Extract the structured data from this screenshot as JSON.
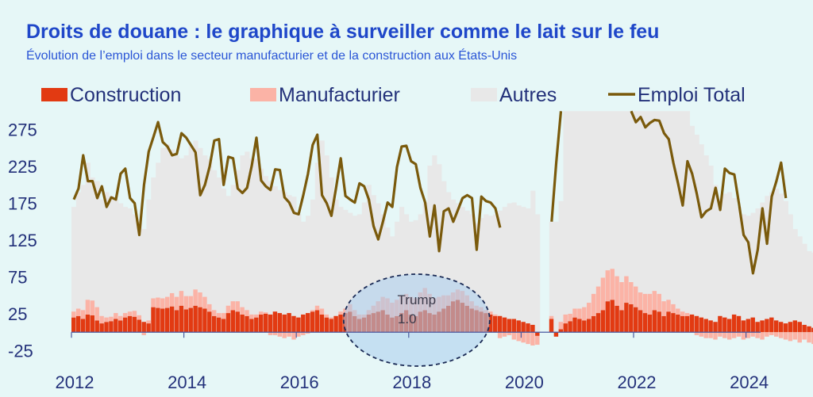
{
  "title": "Droits de douane : le graphique à surveiller comme le lait sur le feu",
  "subtitle": "Évolution de l’emploi dans le secteur manufacturier et de la construction aux États-Unis",
  "colors": {
    "construction": "#e23a12",
    "manufacturier": "#fbb3a6",
    "autres": "#e8e8e8",
    "total": "#7a5a0c",
    "axis_text": "#23317a",
    "annotation_fill": "#a9cdef",
    "annotation_stroke": "#1a2a55"
  },
  "annotation": {
    "label_line1": "Trump",
    "label_line2": "1.0"
  },
  "chart_data": {
    "type": "bar",
    "x_unit": "month",
    "y_ticks": [
      275,
      225,
      175,
      125,
      75,
      25,
      -25
    ],
    "ylim": [
      -25,
      300
    ],
    "x_ticks": [
      "2012",
      "2014",
      "2016",
      "2018",
      "2020",
      "2022",
      "2024"
    ],
    "legend": [
      "Construction",
      "Manufacturier",
      "Autres",
      "Emploi Total"
    ],
    "legend_position": "top",
    "series": [
      {
        "name": "Construction",
        "kind": "bar",
        "segments": [
          {
            "start": "2012-01",
            "values": [
              20,
              22,
              18,
              24,
              23,
              16,
              12,
              14,
              15,
              18,
              16,
              20,
              22,
              21,
              17,
              14,
              12,
              34,
              33,
              32,
              33,
              35,
              30,
              36,
              31,
              33,
              36,
              34,
              32,
              28,
              22,
              20,
              18,
              26,
              30,
              28,
              24,
              22,
              18,
              20,
              24,
              25,
              24,
              28,
              26,
              24,
              26,
              22,
              20,
              24,
              26,
              28,
              30,
              24,
              20,
              18,
              22,
              24,
              26,
              28,
              22,
              18,
              20,
              24,
              26,
              28,
              30,
              24,
              20,
              22,
              26,
              30,
              24,
              22,
              28,
              30,
              26,
              24,
              28,
              32,
              36,
              42,
              44,
              40,
              36,
              32,
              30,
              28,
              26,
              24,
              22,
              22,
              20,
              18,
              18,
              16,
              14,
              12,
              10,
              -5
            ]
          },
          {
            "start": "2020-07",
            "values": [
              18,
              -6,
              4,
              12,
              15,
              20,
              18,
              16,
              18,
              22,
              26,
              30,
              42,
              44,
              36,
              30,
              40,
              38,
              34,
              30,
              26,
              24,
              30,
              28,
              22,
              28,
              26,
              24,
              22,
              22,
              24,
              22,
              20,
              18,
              16,
              14,
              22,
              20,
              18,
              24,
              22,
              16,
              18,
              20,
              14,
              16,
              18,
              20,
              16,
              14,
              12,
              14,
              16,
              14,
              10,
              8,
              6,
              8,
              6,
              10
            ]
          }
        ]
      },
      {
        "name": "Manufacturier",
        "kind": "bar",
        "segments": [
          {
            "start": "2012-01",
            "values": [
              8,
              10,
              12,
              20,
              20,
              18,
              10,
              6,
              6,
              8,
              6,
              6,
              6,
              8,
              6,
              -4,
              4,
              12,
              14,
              14,
              15,
              18,
              18,
              20,
              18,
              16,
              22,
              20,
              16,
              10,
              8,
              6,
              8,
              10,
              12,
              14,
              10,
              8,
              6,
              4,
              4,
              2,
              -4,
              -4,
              -6,
              -8,
              -6,
              -10,
              -6,
              -4,
              -2,
              2,
              6,
              8,
              4,
              2,
              0,
              4,
              6,
              10,
              8,
              6,
              4,
              6,
              10,
              14,
              18,
              22,
              20,
              22,
              24,
              22,
              24,
              24,
              26,
              30,
              26,
              22,
              20,
              18,
              14,
              12,
              14,
              16,
              14,
              10,
              6,
              6,
              4,
              4,
              2,
              -8,
              -6,
              -4,
              -10,
              -12,
              -14,
              -16,
              -18,
              -12
            ]
          },
          {
            "start": "2020-07",
            "values": [
              4,
              0,
              10,
              12,
              10,
              12,
              14,
              18,
              22,
              30,
              36,
              44,
              42,
              42,
              40,
              38,
              36,
              30,
              28,
              24,
              26,
              28,
              26,
              24,
              20,
              16,
              12,
              8,
              6,
              4,
              0,
              -4,
              -6,
              -8,
              -8,
              -10,
              -6,
              -8,
              -10,
              -8,
              -6,
              -10,
              -8,
              -6,
              -8,
              -10,
              -6,
              -4,
              -6,
              -8,
              -10,
              -12,
              -10,
              -14,
              -10,
              -14,
              -16,
              -10,
              -12,
              -12
            ]
          }
        ]
      },
      {
        "name": "Autres",
        "kind": "bar_envelope",
        "segments": [
          {
            "start": "2012-01",
            "values": [
              170,
              190,
              200,
              230,
              210,
              205,
              180,
              190,
              185,
              180,
              175,
              170,
              168,
              160,
              150,
              140,
              180,
              210,
              230,
              250,
              255,
              248,
              240,
              236,
              240,
              252,
              260,
              250,
              240,
              235,
              220,
              210,
              195,
              185,
              200,
              220,
              240,
              245,
              236,
              235,
              222,
              212,
              205,
              198,
              193,
              190,
              186,
              184,
              160,
              150,
              158,
              180,
              230,
              260,
              240,
              210,
              180,
              170,
              166,
              162,
              158,
              160,
              176,
              200,
              186,
              175,
              160,
              142,
              130,
              150,
              170,
              160,
              150,
              152,
              160,
              176,
              226,
              240,
              228,
              205,
              190,
              180,
              175,
              170,
              165,
              160,
              148,
              155,
              160,
              158,
              160,
              165,
              170,
              175,
              176,
              172,
              170,
              168,
              192,
              160
            ]
          },
          {
            "start": "2020-07",
            "values": [
              150,
              150,
              178,
              300,
              300,
              300,
              300,
              300,
              300,
              300,
              300,
              300,
              300,
              300,
              300,
              300,
              300,
              300,
              300,
              300,
              300,
              300,
              300,
              300,
              300,
              300,
              300,
              300,
              300,
              300,
              280,
              268,
              255,
              240,
              226,
              200,
              180,
              188,
              190,
              182,
              170,
              160,
              158,
              162,
              168,
              176,
              185,
              190,
              195,
              188,
              178,
              160,
              140,
              130,
              120,
              110,
              108,
              120,
              150,
              180
            ]
          }
        ]
      },
      {
        "name": "Emploi Total",
        "kind": "line",
        "segments": [
          {
            "start": "2012-01",
            "values": [
              180,
              195,
              240,
              205,
              205,
              182,
              198,
              170,
              183,
              180,
              215,
              222,
              182,
              175,
              132,
              200,
              245,
              265,
              285,
              258,
              252,
              240,
              242,
              270,
              264,
              254,
              244,
              186,
              200,
              225,
              260,
              262,
              200,
              238,
              236,
              195,
              189,
              196,
              226,
              264,
              206,
              198,
              193,
              221,
              220,
              183,
              176,
              162,
              160,
              186,
              215,
              254,
              268,
              186,
              175,
              158,
              196,
              236,
              185,
              180,
              176,
              202,
              198,
              180,
              144,
              126,
              150,
              176,
              170,
              224,
              252,
              253,
              232,
              228,
              196,
              176,
              130,
              172,
              110,
              164,
              168,
              150,
              166,
              182,
              186,
              182,
              112,
              184,
              178,
              176,
              168,
              142
            ]
          },
          {
            "start": "2020-07",
            "values": [
              150,
              230,
              300
            ]
          },
          {
            "start": "2021-12",
            "values": [
              300,
              285,
              292,
              278,
              284,
              288,
              287,
              270,
              262,
              230,
              202,
              172,
              232,
              215,
              188,
              156,
              164,
              168,
              196,
              166,
              222,
              216,
              214,
              174,
              132,
              122,
              80,
              112,
              168,
              120,
              184,
              205,
              230,
              182
            ]
          }
        ]
      }
    ]
  }
}
